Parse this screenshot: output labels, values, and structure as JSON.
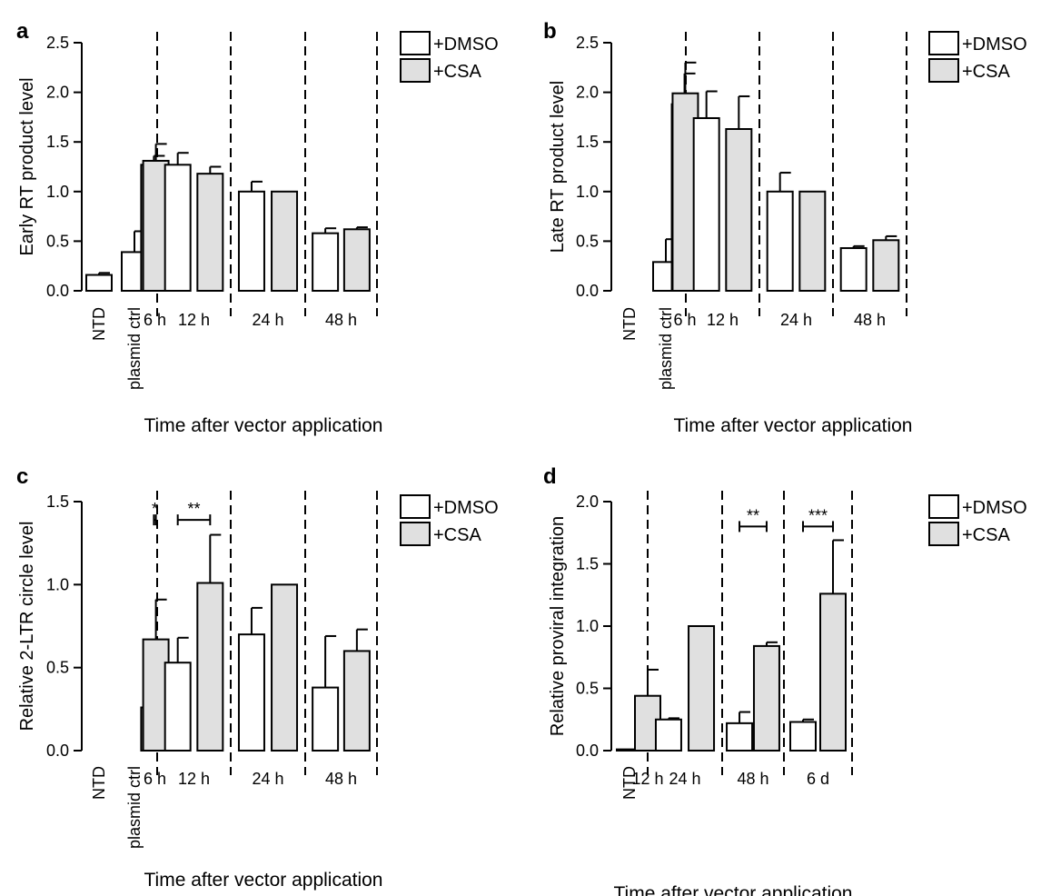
{
  "colors": {
    "dmso": "#ffffff",
    "csa": "#e0e0e0",
    "line": "#000000"
  },
  "chart_data": [
    {
      "panel": "a",
      "type": "bar",
      "ylabel": "Early RT product level",
      "xlabel": "Time after vector application",
      "ylim": [
        0,
        2.5
      ],
      "yticks": [
        "0.0",
        "0.5",
        "1.0",
        "1.5",
        "2.0",
        "2.5"
      ],
      "legend": [
        "+DMSO",
        "+CSA"
      ],
      "groups": [
        {
          "label": "NTD",
          "rotated": true,
          "bars": [
            {
              "series": "+DMSO",
              "value": 0.16,
              "error": 0.02
            }
          ]
        },
        {
          "label": "plasmid ctrl",
          "rotated": true,
          "bars": [
            {
              "series": "+DMSO",
              "value": 0.39,
              "error": 0.21
            }
          ]
        },
        {
          "label": "6 h",
          "bars": [
            {
              "series": "+DMSO",
              "value": 1.27,
              "error": 0.09
            },
            {
              "series": "+CSA",
              "value": 1.31,
              "error": 0.17
            }
          ]
        },
        {
          "label": "12 h",
          "bars": [
            {
              "series": "+DMSO",
              "value": 1.27,
              "error": 0.12
            },
            {
              "series": "+CSA",
              "value": 1.18,
              "error": 0.07
            }
          ]
        },
        {
          "label": "24 h",
          "bars": [
            {
              "series": "+DMSO",
              "value": 1.0,
              "error": 0.1
            },
            {
              "series": "+CSA",
              "value": 1.0,
              "error": 0
            }
          ]
        },
        {
          "label": "48 h",
          "bars": [
            {
              "series": "+DMSO",
              "value": 0.58,
              "error": 0.05
            },
            {
              "series": "+CSA",
              "value": 0.62,
              "error": 0.02
            }
          ]
        }
      ],
      "significance": []
    },
    {
      "panel": "b",
      "type": "bar",
      "ylabel": "Late RT product level",
      "xlabel": "Time after vector application",
      "ylim": [
        0,
        2.5
      ],
      "yticks": [
        "0.0",
        "0.5",
        "1.0",
        "1.5",
        "2.0",
        "2.5"
      ],
      "legend": [
        "+DMSO",
        "+CSA"
      ],
      "groups": [
        {
          "label": "NTD",
          "rotated": true,
          "bars": [
            {
              "series": "+DMSO",
              "value": 0,
              "error": 0
            }
          ]
        },
        {
          "label": "plasmid ctrl",
          "rotated": true,
          "bars": [
            {
              "series": "+DMSO",
              "value": 0.29,
              "error": 0.23
            }
          ]
        },
        {
          "label": "6 h",
          "bars": [
            {
              "series": "+DMSO",
              "value": 1.88,
              "error": 0.31
            },
            {
              "series": "+CSA",
              "value": 1.99,
              "error": 0.31
            }
          ]
        },
        {
          "label": "12 h",
          "bars": [
            {
              "series": "+DMSO",
              "value": 1.74,
              "error": 0.27
            },
            {
              "series": "+CSA",
              "value": 1.63,
              "error": 0.33
            }
          ]
        },
        {
          "label": "24 h",
          "bars": [
            {
              "series": "+DMSO",
              "value": 1.0,
              "error": 0.19
            },
            {
              "series": "+CSA",
              "value": 1.0,
              "error": 0
            }
          ]
        },
        {
          "label": "48 h",
          "bars": [
            {
              "series": "+DMSO",
              "value": 0.43,
              "error": 0.02
            },
            {
              "series": "+CSA",
              "value": 0.51,
              "error": 0.04
            }
          ]
        }
      ],
      "significance": []
    },
    {
      "panel": "c",
      "type": "bar",
      "ylabel": "Relative 2-LTR circle level",
      "xlabel": "Time after vector application",
      "ylim": [
        0,
        1.5
      ],
      "yticks": [
        "0.0",
        "0.5",
        "1.0",
        "1.5"
      ],
      "legend": [
        "+DMSO",
        "+CSA"
      ],
      "groups": [
        {
          "label": "NTD",
          "rotated": true,
          "bars": [
            {
              "series": "+DMSO",
              "value": 0,
              "error": 0
            }
          ]
        },
        {
          "label": "plasmid ctrl",
          "rotated": true,
          "bars": [
            {
              "series": "+DMSO",
              "value": 0,
              "error": 0
            }
          ]
        },
        {
          "label": "6 h",
          "bars": [
            {
              "series": "+DMSO",
              "value": 0.26,
              "error": 0.31
            },
            {
              "series": "+CSA",
              "value": 0.67,
              "error": 0.24
            }
          ]
        },
        {
          "label": "12 h",
          "bars": [
            {
              "series": "+DMSO",
              "value": 0.53,
              "error": 0.15
            },
            {
              "series": "+CSA",
              "value": 1.01,
              "error": 0.29
            }
          ]
        },
        {
          "label": "24 h",
          "bars": [
            {
              "series": "+DMSO",
              "value": 0.7,
              "error": 0.16
            },
            {
              "series": "+CSA",
              "value": 1.0,
              "error": 0
            }
          ]
        },
        {
          "label": "48 h",
          "bars": [
            {
              "series": "+DMSO",
              "value": 0.38,
              "error": 0.31
            },
            {
              "series": "+CSA",
              "value": 0.6,
              "error": 0.13
            }
          ]
        }
      ],
      "significance": [
        {
          "group": 2,
          "label": "*",
          "y": 1.39
        },
        {
          "group": 3,
          "label": "**",
          "y": 1.39
        }
      ]
    },
    {
      "panel": "d",
      "type": "bar",
      "ylabel": "Relative proviral integration",
      "xlabel": "Time after vector application",
      "ylim": [
        0,
        2.0
      ],
      "yticks": [
        "0.0",
        "0.5",
        "1.0",
        "1.5",
        "2.0"
      ],
      "legend": [
        "+DMSO",
        "+CSA"
      ],
      "groups": [
        {
          "label": "NTD",
          "rotated": true,
          "bars": [
            {
              "series": "+DMSO",
              "value": 0.01,
              "error": 0
            }
          ]
        },
        {
          "label": "12 h",
          "bars": [
            {
              "series": "+DMSO",
              "value": 0.21,
              "error": 0.05
            },
            {
              "series": "+CSA",
              "value": 0.44,
              "error": 0.21
            }
          ]
        },
        {
          "label": "24 h",
          "bars": [
            {
              "series": "+DMSO",
              "value": 0.25,
              "error": 0.01
            },
            {
              "series": "+CSA",
              "value": 1.0,
              "error": 0
            }
          ]
        },
        {
          "label": "48 h",
          "bars": [
            {
              "series": "+DMSO",
              "value": 0.22,
              "error": 0.09
            },
            {
              "series": "+CSA",
              "value": 0.84,
              "error": 0.03
            }
          ]
        },
        {
          "label": "6 d",
          "bars": [
            {
              "series": "+DMSO",
              "value": 0.23,
              "error": 0.02
            },
            {
              "series": "+CSA",
              "value": 1.26,
              "error": 0.43
            }
          ]
        }
      ],
      "significance": [
        {
          "group": 3,
          "label": "**",
          "y": 1.8
        },
        {
          "group": 4,
          "label": "***",
          "y": 1.8
        }
      ]
    }
  ]
}
